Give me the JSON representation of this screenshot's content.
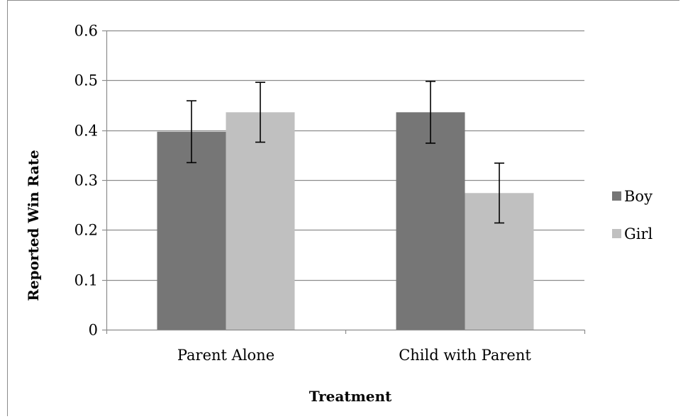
{
  "chart_data": {
    "type": "bar",
    "title": "",
    "xlabel": "Treatment",
    "ylabel": "Reported Win Rate",
    "categories": [
      "Parent Alone",
      "Child with Parent"
    ],
    "series": [
      {
        "name": "Boy",
        "color": "#767676",
        "values": [
          0.397,
          0.436
        ],
        "error_low": [
          0.335,
          0.374
        ],
        "error_high": [
          0.459,
          0.498
        ]
      },
      {
        "name": "Girl",
        "color": "#c0c0c0",
        "values": [
          0.436,
          0.274
        ],
        "error_low": [
          0.376,
          0.214
        ],
        "error_high": [
          0.496,
          0.334
        ]
      }
    ],
    "ylim": [
      0,
      0.6
    ],
    "yticks": [
      "0",
      "0.1",
      "0.2",
      "0.3",
      "0.4",
      "0.5",
      "0.6"
    ],
    "grid": true,
    "legend_position": "right"
  }
}
